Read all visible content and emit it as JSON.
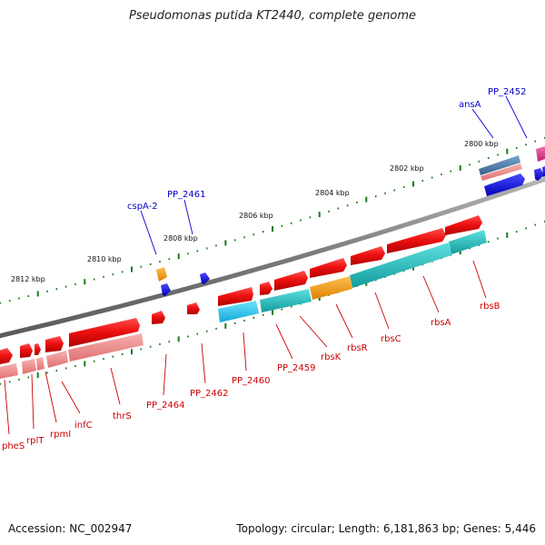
{
  "title": "Pseudomonas putida KT2440, complete genome",
  "footer": {
    "accession": "Accession: NC_002947",
    "stats": "Topology: circular; Length: 6,181,863 bp; Genes: 5,446"
  },
  "colors": {
    "backbone": "#808080",
    "tick": "#1a7a1a",
    "gene_red": "#ee1111",
    "gene_red_light": "#f08a8a",
    "gene_teal": "#1fb8b8",
    "gene_cyan": "#22c8ee",
    "gene_orange": "#ff9900",
    "gene_blue": "#1111ee",
    "gene_steel": "#4a78a6",
    "gene_pink": "#e0308a",
    "label_red": "#cc0000",
    "label_blue": "#0000cc"
  },
  "scale_labels": [
    {
      "text": "2812 kbp"
    },
    {
      "text": "2810 kbp"
    },
    {
      "text": "2808 kbp"
    },
    {
      "text": "2806 kbp"
    },
    {
      "text": "2804 kbp"
    },
    {
      "text": "2802 kbp"
    },
    {
      "text": "2800 kbp"
    }
  ],
  "gene_labels": [
    {
      "text": "pheS",
      "color": "red"
    },
    {
      "text": "rplT",
      "color": "red"
    },
    {
      "text": "rpmI",
      "color": "red"
    },
    {
      "text": "infC",
      "color": "red"
    },
    {
      "text": "thrS",
      "color": "red"
    },
    {
      "text": "PP_2464",
      "color": "red"
    },
    {
      "text": "PP_2462",
      "color": "red"
    },
    {
      "text": "PP_2460",
      "color": "red"
    },
    {
      "text": "PP_2459",
      "color": "red"
    },
    {
      "text": "rbsK",
      "color": "red"
    },
    {
      "text": "rbsR",
      "color": "red"
    },
    {
      "text": "rbsC",
      "color": "red"
    },
    {
      "text": "rbsA",
      "color": "red"
    },
    {
      "text": "rbsB",
      "color": "red"
    },
    {
      "text": "cspA-2",
      "color": "blue"
    },
    {
      "text": "PP_2461",
      "color": "blue"
    },
    {
      "text": "ansA",
      "color": "blue"
    },
    {
      "text": "PP_2452",
      "color": "blue"
    }
  ]
}
